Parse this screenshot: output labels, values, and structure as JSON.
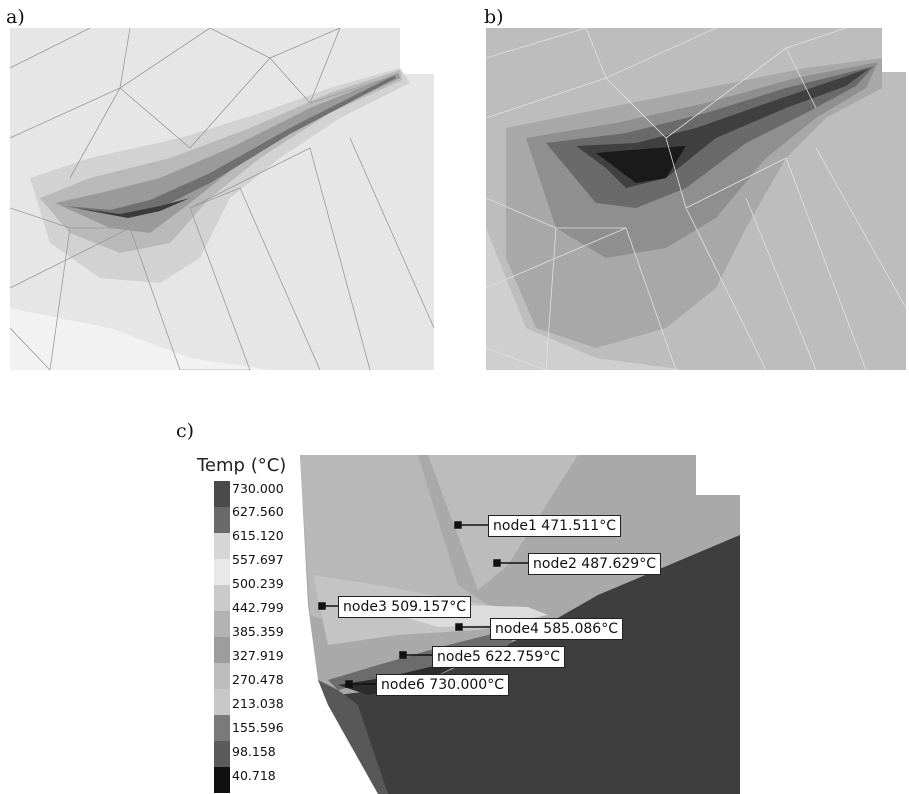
{
  "panels": {
    "a": {
      "label": "a)"
    },
    "b": {
      "label": "b)"
    },
    "c": {
      "label": "c)"
    }
  },
  "legend": {
    "title": "Temp (°C)",
    "values": [
      "730.000",
      "627.560",
      "615.120",
      "557.697",
      "500.239",
      "442.799",
      "385.359",
      "327.919",
      "270.478",
      "213.038",
      "155.596",
      "98.158",
      "40.718"
    ],
    "colors": [
      "#4a4a4a",
      "#6a6a6a",
      "#d6d6d6",
      "#e8e8e8",
      "#cacaca",
      "#b3b3b3",
      "#9d9d9d",
      "#bdbdbd",
      "#c8c8c8",
      "#7a7a7a",
      "#5a5a5a",
      "#303030",
      "#101010"
    ]
  },
  "nodes": [
    {
      "label": "node1 471.511°C"
    },
    {
      "label": "node2 487.629°C"
    },
    {
      "label": "node3 509.157°C"
    },
    {
      "label": "node4 585.086°C"
    },
    {
      "label": "node5 622.759°C"
    },
    {
      "label": "node6 730.000°C"
    }
  ]
}
